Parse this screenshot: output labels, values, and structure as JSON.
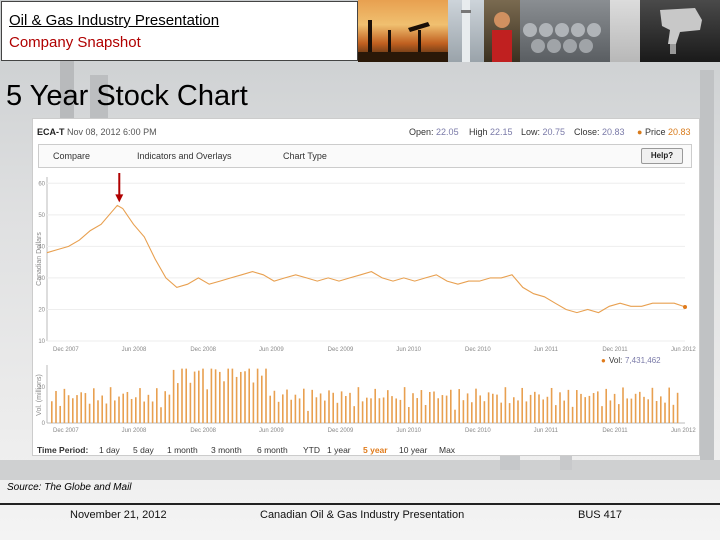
{
  "header": {
    "title": "Oil & Gas Industry Presentation",
    "subtitle": "Company Snapshot"
  },
  "slide": {
    "title": "5 Year Stock Chart"
  },
  "chart_widget": {
    "symbol": "ECA-T",
    "datetime": "Nov 08, 2012 6:00 PM",
    "ohlc": {
      "open_label": "Open:",
      "open": "22.05",
      "high_label": "High",
      "high": "22.15",
      "low_label": "Low:",
      "low": "20.75",
      "close_label": "Close:",
      "close": "20.83",
      "price_label": "Price",
      "price": "20.83"
    },
    "toolbar": {
      "compare": "Compare",
      "indicators": "Indicators and Overlays",
      "chart_type": "Chart Type",
      "help": "Help?"
    },
    "price_axis_label": "Canadian Dollars",
    "volume_axis_label": "Vol. (millions)",
    "volume_label": "Vol:",
    "volume_value": "7,431,462",
    "time_period": {
      "label": "Time Period:",
      "options": [
        "1 day",
        "5 day",
        "1 month",
        "3 month",
        "6 month",
        "YTD",
        "1 year",
        "5 year",
        "10 year",
        "Max"
      ],
      "selected": "5 year"
    }
  },
  "chart_data": {
    "type": "line",
    "y_ticks": [
      10,
      20,
      30,
      40,
      50,
      60
    ],
    "ylim": [
      10,
      62
    ],
    "x_ticks": [
      "Dec 2007",
      "Jun 2008",
      "Dec 2008",
      "Jun 2009",
      "Dec 2009",
      "Jun 2010",
      "Dec 2010",
      "Jun 2011",
      "Dec 2011",
      "Jun 2012"
    ],
    "xlim": [
      0,
      59
    ],
    "series": [
      {
        "x": [
          0,
          1,
          2,
          3,
          4,
          5,
          6,
          6.5,
          7,
          8,
          9,
          10,
          11,
          12,
          13,
          14,
          15,
          16,
          17,
          18,
          19,
          20,
          21,
          22,
          23,
          24,
          25,
          26,
          27,
          28,
          29,
          30,
          31,
          32,
          33,
          34,
          35,
          36,
          37,
          38,
          39,
          40,
          41,
          42,
          43,
          44,
          45,
          46,
          47,
          48,
          49,
          50,
          51,
          52,
          53,
          54,
          55,
          56,
          57,
          58,
          59
        ],
        "values": [
          38,
          39,
          40,
          42,
          45,
          47,
          51,
          53,
          52,
          47,
          43,
          36,
          30,
          27,
          28,
          30,
          28,
          29,
          30,
          31,
          32,
          31,
          29,
          30,
          31,
          30,
          29,
          30,
          29,
          30,
          31,
          32,
          30,
          29,
          30,
          29,
          30,
          31,
          29,
          28,
          29,
          29,
          30,
          30,
          31,
          27,
          25,
          24,
          22,
          20,
          19,
          20,
          19,
          21,
          22,
          21,
          21,
          22,
          22,
          22,
          20.8
        ]
      }
    ],
    "annotation": "arrow marking peak",
    "volume": {
      "y_ticks": [
        0,
        10
      ],
      "ylim": [
        0,
        16
      ]
    },
    "volume_x_ticks": [
      "Dec 2007",
      "Jun 2008",
      "Dec 2008",
      "Jun 2009",
      "Dec 2009",
      "Jun 2010",
      "Dec 2010",
      "Jun 2011",
      "Dec 2011",
      "Jun 2012"
    ]
  },
  "source": "Source: The Globe and Mail",
  "footer": {
    "date": "November 21, 2012",
    "presentation": "Canadian Oil & Gas Industry Presentation",
    "course": "BUS 417"
  }
}
